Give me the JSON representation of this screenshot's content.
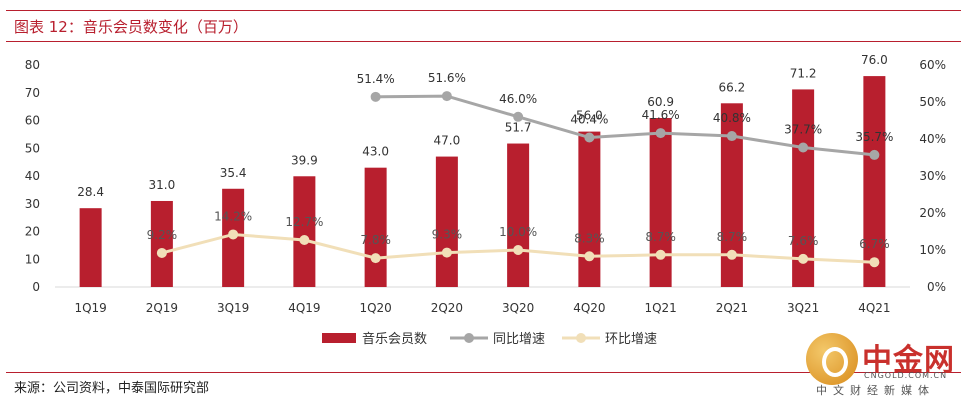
{
  "title": "图表 12：音乐会员数变化（百万）",
  "source": "来源：公司资料，中泰国际研究部",
  "watermark": {
    "name": "中金网",
    "url": "CNGOLD.COM.CN",
    "slogan": "中文财经新媒体"
  },
  "colors": {
    "bar": "#b81f2e",
    "yoy": "#a6a6a6",
    "qoq": "#f1dfb8",
    "accent": "#b81f2e"
  },
  "chart_data": {
    "type": "bar",
    "categories": [
      "1Q19",
      "2Q19",
      "3Q19",
      "4Q19",
      "1Q20",
      "2Q20",
      "3Q20",
      "4Q20",
      "1Q21",
      "2Q21",
      "3Q21",
      "4Q21"
    ],
    "series": [
      {
        "name": "音乐会员数",
        "type": "bar",
        "axis": "left",
        "values": [
          28.4,
          31.0,
          35.4,
          39.9,
          43.0,
          47.0,
          51.7,
          56.0,
          60.9,
          66.2,
          71.2,
          76.0
        ],
        "labels": [
          "28.4",
          "31.0",
          "35.4",
          "39.9",
          "43.0",
          "47.0",
          "51.7",
          "56.0",
          "60.9",
          "66.2",
          "71.2",
          "76.0"
        ]
      },
      {
        "name": "同比增速",
        "type": "line",
        "axis": "right",
        "values": [
          null,
          null,
          null,
          null,
          51.4,
          51.6,
          46.0,
          40.4,
          41.6,
          40.8,
          37.7,
          35.7
        ],
        "labels": [
          "",
          "",
          "",
          "",
          "51.4%",
          "51.6%",
          "46.0%",
          "40.4%",
          "41.6%",
          "40.8%",
          "37.7%",
          "35.7%"
        ]
      },
      {
        "name": "环比增速",
        "type": "line",
        "axis": "right",
        "values": [
          null,
          9.2,
          14.2,
          12.7,
          7.8,
          9.3,
          10.0,
          8.3,
          8.7,
          8.7,
          7.6,
          6.7
        ],
        "labels": [
          "",
          "9.2%",
          "14.2%",
          "12.7%",
          "7.8%",
          "9.3%",
          "10.0%",
          "8.3%",
          "8.7%",
          "8.7%",
          "7.6%",
          "6.7%"
        ]
      }
    ],
    "y_left": {
      "min": 0,
      "max": 80,
      "ticks": [
        "0",
        "10",
        "20",
        "30",
        "40",
        "50",
        "60",
        "70",
        "80"
      ]
    },
    "y_right": {
      "min": 0,
      "max": 60,
      "ticks": [
        "0%",
        "10%",
        "20%",
        "30%",
        "40%",
        "50%",
        "60%"
      ]
    },
    "grid": false,
    "legend": "bottom-center"
  }
}
